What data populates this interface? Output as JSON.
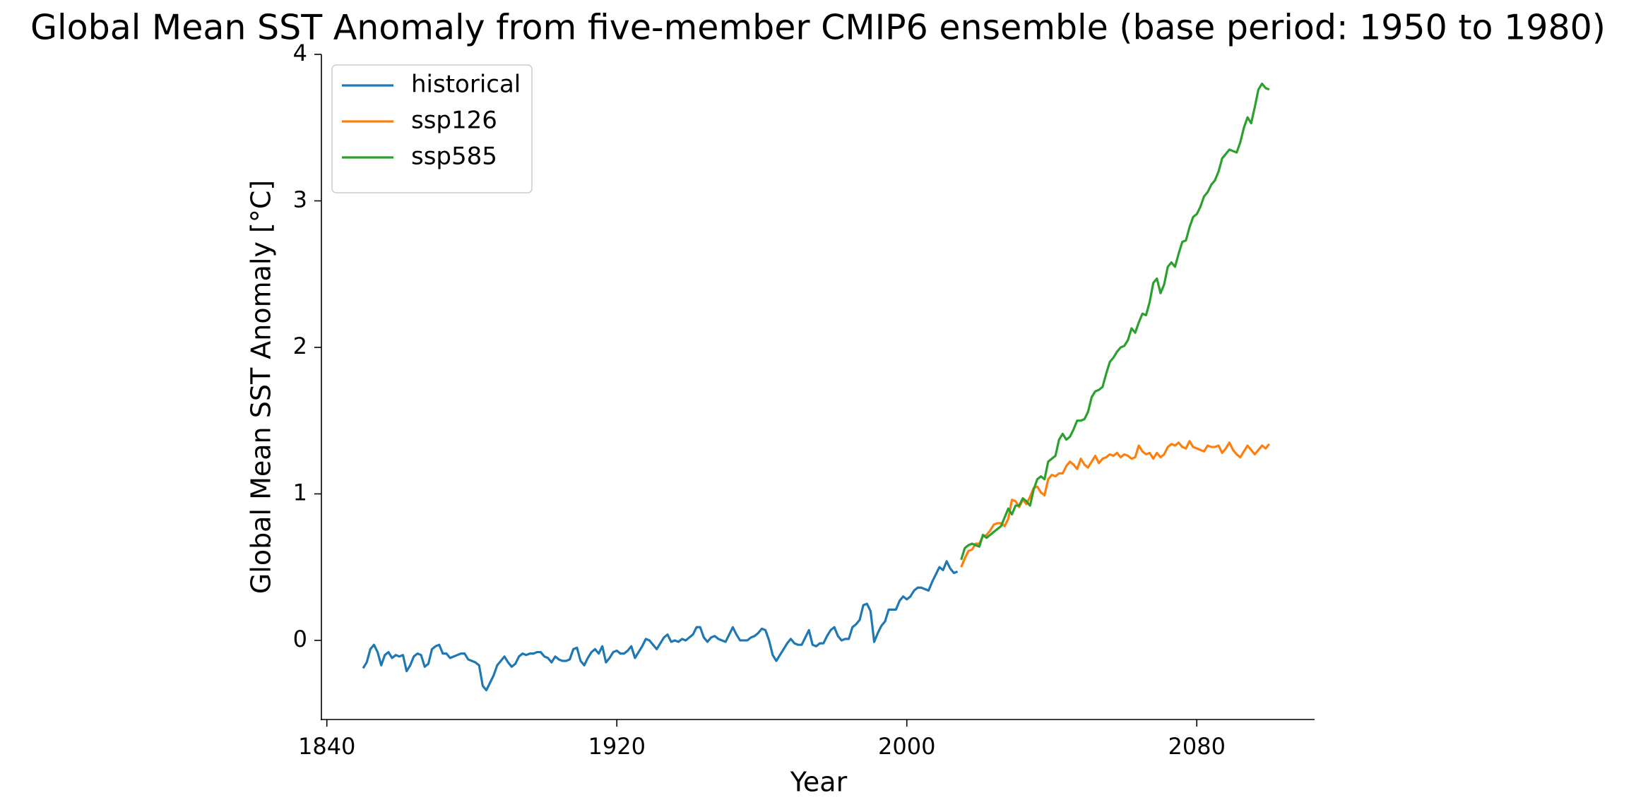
{
  "chart_data": {
    "type": "line",
    "title": "Global Mean SST Anomaly from five-member CMIP6 ensemble (base period: 1950 to 1980)",
    "x_label": "Year",
    "y_label": "Global Mean SST Anomaly [°C]",
    "xlim": [
      1838.5,
      2112.5
    ],
    "ylim": [
      -0.54,
      4
    ],
    "xticks": [
      1840,
      1920,
      2000,
      2080
    ],
    "yticks": [
      0,
      1,
      2,
      3,
      4
    ],
    "legend": "upper left",
    "grid": false,
    "series": [
      {
        "name": "historical",
        "color": "#1f77b4",
        "x": [
          1850,
          1851,
          1852,
          1853,
          1854,
          1855,
          1856,
          1857,
          1858,
          1859,
          1860,
          1861,
          1862,
          1863,
          1864,
          1865,
          1866,
          1867,
          1868,
          1869,
          1870,
          1871,
          1872,
          1873,
          1874,
          1875,
          1876,
          1877,
          1878,
          1879,
          1880,
          1881,
          1882,
          1883,
          1884,
          1885,
          1886,
          1887,
          1888,
          1889,
          1890,
          1891,
          1892,
          1893,
          1894,
          1895,
          1896,
          1897,
          1898,
          1899,
          1900,
          1901,
          1902,
          1903,
          1904,
          1905,
          1906,
          1907,
          1908,
          1909,
          1910,
          1911,
          1912,
          1913,
          1914,
          1915,
          1916,
          1917,
          1918,
          1919,
          1920,
          1921,
          1922,
          1923,
          1924,
          1925,
          1926,
          1927,
          1928,
          1929,
          1930,
          1931,
          1932,
          1933,
          1934,
          1935,
          1936,
          1937,
          1938,
          1939,
          1940,
          1941,
          1942,
          1943,
          1944,
          1945,
          1946,
          1947,
          1948,
          1949,
          1950,
          1951,
          1952,
          1953,
          1954,
          1955,
          1956,
          1957,
          1958,
          1959,
          1960,
          1961,
          1962,
          1963,
          1964,
          1965,
          1966,
          1967,
          1968,
          1969,
          1970,
          1971,
          1972,
          1973,
          1974,
          1975,
          1976,
          1977,
          1978,
          1979,
          1980,
          1981,
          1982,
          1983,
          1984,
          1985,
          1986,
          1987,
          1988,
          1989,
          1990,
          1991,
          1992,
          1993,
          1994,
          1995,
          1996,
          1997,
          1998,
          1999,
          2000,
          2001,
          2002,
          2003,
          2004,
          2005,
          2006,
          2007,
          2008,
          2009,
          2010,
          2011,
          2012,
          2013,
          2014
        ],
        "values": [
          -0.19,
          -0.15,
          -0.06,
          -0.03,
          -0.08,
          -0.17,
          -0.1,
          -0.08,
          -0.12,
          -0.1,
          -0.11,
          -0.1,
          -0.21,
          -0.17,
          -0.11,
          -0.09,
          -0.1,
          -0.18,
          -0.16,
          -0.06,
          -0.04,
          -0.03,
          -0.09,
          -0.09,
          -0.12,
          -0.11,
          -0.1,
          -0.09,
          -0.09,
          -0.13,
          -0.14,
          -0.15,
          -0.17,
          -0.31,
          -0.34,
          -0.29,
          -0.24,
          -0.17,
          -0.14,
          -0.11,
          -0.15,
          -0.18,
          -0.16,
          -0.11,
          -0.09,
          -0.1,
          -0.09,
          -0.09,
          -0.08,
          -0.08,
          -0.11,
          -0.12,
          -0.15,
          -0.11,
          -0.13,
          -0.14,
          -0.14,
          -0.13,
          -0.06,
          -0.05,
          -0.14,
          -0.17,
          -0.12,
          -0.08,
          -0.06,
          -0.09,
          -0.04,
          -0.15,
          -0.12,
          -0.08,
          -0.07,
          -0.09,
          -0.09,
          -0.07,
          -0.04,
          -0.12,
          -0.08,
          -0.04,
          0.01,
          0.0,
          -0.03,
          -0.06,
          -0.02,
          0.02,
          0.04,
          -0.01,
          0.0,
          -0.01,
          0.01,
          0.0,
          0.02,
          0.04,
          0.09,
          0.09,
          0.02,
          -0.01,
          0.02,
          0.03,
          0.01,
          0.0,
          -0.01,
          0.04,
          0.09,
          0.04,
          0.0,
          0.0,
          0.0,
          0.02,
          0.03,
          0.05,
          0.08,
          0.07,
          0.0,
          -0.1,
          -0.14,
          -0.1,
          -0.06,
          -0.02,
          0.01,
          -0.02,
          -0.03,
          -0.03,
          0.02,
          0.07,
          -0.03,
          -0.04,
          -0.02,
          -0.02,
          0.03,
          0.07,
          0.09,
          0.03,
          0.0,
          0.01,
          0.01,
          0.09,
          0.11,
          0.14,
          0.24,
          0.25,
          0.2,
          -0.01,
          0.05,
          0.1,
          0.13,
          0.21,
          0.21,
          0.21,
          0.27,
          0.3,
          0.28,
          0.3,
          0.34,
          0.36,
          0.36,
          0.35,
          0.34,
          0.4,
          0.45,
          0.5,
          0.48,
          0.54,
          0.49,
          0.46,
          0.47
        ]
      },
      {
        "name": "ssp126",
        "color": "#ff7f0e",
        "x": [
          2015,
          2016,
          2017,
          2018,
          2019,
          2020,
          2021,
          2022,
          2023,
          2024,
          2025,
          2026,
          2027,
          2028,
          2029,
          2030,
          2031,
          2032,
          2033,
          2034,
          2035,
          2036,
          2037,
          2038,
          2039,
          2040,
          2041,
          2042,
          2043,
          2044,
          2045,
          2046,
          2047,
          2048,
          2049,
          2050,
          2051,
          2052,
          2053,
          2054,
          2055,
          2056,
          2057,
          2058,
          2059,
          2060,
          2061,
          2062,
          2063,
          2064,
          2065,
          2066,
          2067,
          2068,
          2069,
          2070,
          2071,
          2072,
          2073,
          2074,
          2075,
          2076,
          2077,
          2078,
          2079,
          2080,
          2081,
          2082,
          2083,
          2084,
          2085,
          2086,
          2087,
          2088,
          2089,
          2090,
          2091,
          2092,
          2093,
          2094,
          2095,
          2096,
          2097,
          2098,
          2099,
          2100
        ],
        "values": [
          0.5,
          0.56,
          0.61,
          0.62,
          0.66,
          0.66,
          0.71,
          0.72,
          0.75,
          0.79,
          0.8,
          0.8,
          0.78,
          0.83,
          0.96,
          0.95,
          0.91,
          0.96,
          0.93,
          0.98,
          1.04,
          1.05,
          1.01,
          0.99,
          1.1,
          1.13,
          1.12,
          1.14,
          1.14,
          1.19,
          1.22,
          1.2,
          1.17,
          1.24,
          1.2,
          1.18,
          1.22,
          1.26,
          1.21,
          1.24,
          1.25,
          1.27,
          1.26,
          1.28,
          1.25,
          1.27,
          1.26,
          1.24,
          1.25,
          1.33,
          1.29,
          1.27,
          1.28,
          1.24,
          1.28,
          1.25,
          1.27,
          1.32,
          1.34,
          1.33,
          1.35,
          1.32,
          1.31,
          1.36,
          1.32,
          1.31,
          1.3,
          1.29,
          1.33,
          1.32,
          1.32,
          1.33,
          1.28,
          1.31,
          1.35,
          1.3,
          1.27,
          1.25,
          1.29,
          1.33,
          1.3,
          1.27,
          1.3,
          1.33,
          1.31,
          1.34
        ]
      },
      {
        "name": "ssp585",
        "color": "#2ca02c",
        "x": [
          2015,
          2016,
          2017,
          2018,
          2019,
          2020,
          2021,
          2022,
          2023,
          2024,
          2025,
          2026,
          2027,
          2028,
          2029,
          2030,
          2031,
          2032,
          2033,
          2034,
          2035,
          2036,
          2037,
          2038,
          2039,
          2040,
          2041,
          2042,
          2043,
          2044,
          2045,
          2046,
          2047,
          2048,
          2049,
          2050,
          2051,
          2052,
          2053,
          2054,
          2055,
          2056,
          2057,
          2058,
          2059,
          2060,
          2061,
          2062,
          2063,
          2064,
          2065,
          2066,
          2067,
          2068,
          2069,
          2070,
          2071,
          2072,
          2073,
          2074,
          2075,
          2076,
          2077,
          2078,
          2079,
          2080,
          2081,
          2082,
          2083,
          2084,
          2085,
          2086,
          2087,
          2088,
          2089,
          2090,
          2091,
          2092,
          2093,
          2094,
          2095,
          2096,
          2097,
          2098,
          2099,
          2100
        ],
        "values": [
          0.55,
          0.63,
          0.65,
          0.66,
          0.65,
          0.64,
          0.72,
          0.7,
          0.72,
          0.74,
          0.76,
          0.78,
          0.84,
          0.9,
          0.86,
          0.92,
          0.92,
          0.97,
          0.95,
          0.92,
          1.03,
          1.1,
          1.12,
          1.1,
          1.22,
          1.24,
          1.26,
          1.37,
          1.41,
          1.37,
          1.39,
          1.44,
          1.5,
          1.5,
          1.51,
          1.56,
          1.66,
          1.7,
          1.71,
          1.73,
          1.82,
          1.9,
          1.93,
          1.97,
          2.0,
          2.01,
          2.05,
          2.13,
          2.1,
          2.17,
          2.23,
          2.22,
          2.31,
          2.44,
          2.47,
          2.37,
          2.43,
          2.55,
          2.58,
          2.55,
          2.64,
          2.72,
          2.73,
          2.82,
          2.89,
          2.91,
          2.96,
          3.03,
          3.06,
          3.11,
          3.14,
          3.2,
          3.29,
          3.32,
          3.35,
          3.34,
          3.33,
          3.4,
          3.5,
          3.57,
          3.53,
          3.64,
          3.76,
          3.8,
          3.77,
          3.76
        ]
      }
    ]
  }
}
